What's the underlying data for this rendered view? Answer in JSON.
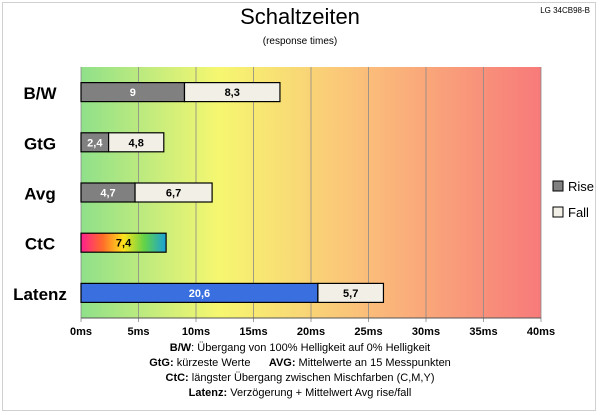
{
  "header": {
    "title": "Schaltzeiten",
    "subtitle": "(response times)",
    "model": "LG 34CB98-B"
  },
  "chart_data": {
    "type": "bar",
    "orientation": "horizontal",
    "stacked": true,
    "title": "Schaltzeiten",
    "subtitle": "(response times)",
    "categories": [
      "B/W",
      "GtG",
      "Avg",
      "CtC",
      "Latenz"
    ],
    "series": [
      {
        "name": "Rise",
        "color": "#808080",
        "values": [
          9,
          2.4,
          4.7,
          7.4,
          20.6
        ]
      },
      {
        "name": "Fall",
        "color": "#f2f0e6",
        "values": [
          8.3,
          4.8,
          6.7,
          null,
          5.7
        ]
      }
    ],
    "value_labels": [
      [
        "9",
        "8,3"
      ],
      [
        "2,4",
        "4,8"
      ],
      [
        "4,7",
        "6,7"
      ],
      [
        "7,4"
      ],
      [
        "20,6",
        "5,7"
      ]
    ],
    "xlim": [
      0,
      40
    ],
    "x_ticks": [
      "0ms",
      "5ms",
      "10ms",
      "15ms",
      "20ms",
      "25ms",
      "30ms",
      "35ms",
      "40ms"
    ],
    "grid": true,
    "legend": {
      "position": "right",
      "entries": [
        "Rise",
        "Fall"
      ]
    },
    "special_colors": {
      "CtC": "rainbow",
      "Latenz_rise": "#3a6fe0",
      "background_gradient": [
        "#8fe08a",
        "#f6f770",
        "#fbbe7a",
        "#f77a7a"
      ]
    }
  },
  "notes": {
    "line1": {
      "key": "B/W",
      "text": ":  Übergang von 100% Helligkeit auf 0% Helligkeit"
    },
    "line2a": {
      "key": "GtG:",
      "text": " kürzeste  Werte"
    },
    "line2b": {
      "key": "AVG:",
      "text": " Mittelwerte  an 15 Messpunkten"
    },
    "line3": {
      "key": "CtC:",
      "text": " längster Übergang  zwischen Mischfarben  (C,M,Y)"
    },
    "line4": {
      "key": "Latenz:",
      "text": " Verzögerung  + Mittelwert Avg rise/fall"
    }
  }
}
